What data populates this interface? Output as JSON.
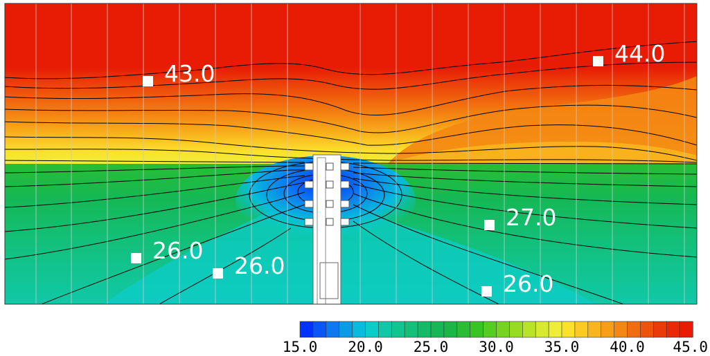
{
  "chart_data": {
    "type": "heatmap",
    "title": "",
    "xlabel": "",
    "ylabel": "",
    "grid": true,
    "colorbar": {
      "min": 15.0,
      "max": 45.0,
      "levels": 30,
      "position": "bottom-right",
      "ticks": [
        "15.0",
        "20.0",
        "25.0",
        "30.0",
        "35.0",
        "40.0",
        "45.0"
      ],
      "colors": [
        "#0033ff",
        "#0a55f5",
        "#0d78f0",
        "#0a9be6",
        "#08bbdc",
        "#0cccc8",
        "#10c8a8",
        "#12c490",
        "#12c07a",
        "#13bb66",
        "#15b855",
        "#1ab748",
        "#28bd34",
        "#3ac424",
        "#55cc20",
        "#76d420",
        "#98dc22",
        "#b8e428",
        "#d6ea30",
        "#eeee38",
        "#fbe02c",
        "#fbcb24",
        "#f9b51d",
        "#f79e16",
        "#f48612",
        "#f16c0e",
        "#ee520b",
        "#eb3a09",
        "#e82806",
        "#e81c05"
      ]
    },
    "annotations": [
      {
        "text": "43.0",
        "value": 43.0
      },
      {
        "text": "44.0",
        "value": 44.0
      },
      {
        "text": "27.0",
        "value": 27.0
      },
      {
        "text": "26.0",
        "value": 26.0
      },
      {
        "text": "26.0",
        "value": 26.0
      },
      {
        "text": "26.0",
        "value": 26.0
      }
    ]
  }
}
